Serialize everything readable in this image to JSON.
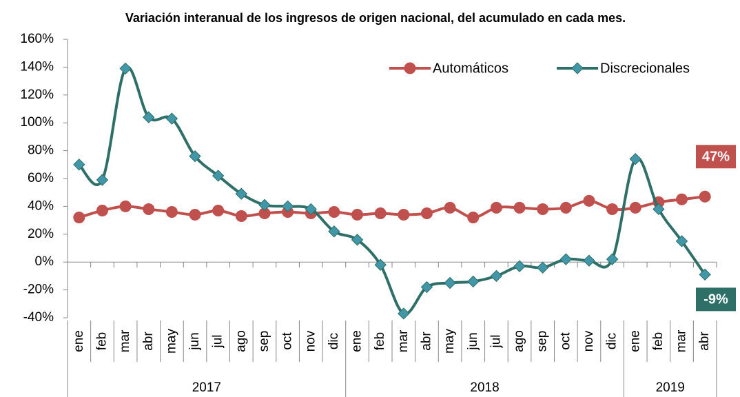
{
  "chart_data": {
    "type": "line",
    "title": "Variación interanual de los ingresos de origen nacional, del acumulado en cada mes.",
    "categories": [
      "ene",
      "feb",
      "mar",
      "abr",
      "may",
      "jun",
      "jul",
      "ago",
      "sep",
      "oct",
      "nov",
      "dic",
      "ene",
      "feb",
      "mar",
      "abr",
      "may",
      "jun",
      "jul",
      "ago",
      "sep",
      "oct",
      "nov",
      "dic",
      "ene",
      "feb",
      "mar",
      "abr"
    ],
    "category_groups": [
      "2017",
      "2017",
      "2017",
      "2017",
      "2017",
      "2017",
      "2017",
      "2017",
      "2017",
      "2017",
      "2017",
      "2017",
      "2018",
      "2018",
      "2018",
      "2018",
      "2018",
      "2018",
      "2018",
      "2018",
      "2018",
      "2018",
      "2018",
      "2018",
      "2019",
      "2019",
      "2019",
      "2019"
    ],
    "series": [
      {
        "name": "Automáticos",
        "color": "#c0504d",
        "marker": "circle",
        "values": [
          32,
          37,
          40,
          38,
          36,
          34,
          37,
          33,
          35,
          36,
          35,
          36,
          34,
          35,
          34,
          35,
          39,
          32,
          39,
          39,
          38,
          39,
          44,
          38,
          39,
          43,
          45,
          47
        ],
        "value_labels": [
          null,
          null,
          null,
          null,
          null,
          null,
          null,
          null,
          null,
          null,
          null,
          null,
          null,
          null,
          null,
          null,
          null,
          null,
          null,
          null,
          null,
          null,
          null,
          null,
          null,
          null,
          null,
          "47%"
        ]
      },
      {
        "name": "Discrecionales",
        "color": "#2e6f68",
        "marker": "diamond",
        "marker_color": "#4197a8",
        "values": [
          70,
          59,
          139,
          104,
          103,
          76,
          62,
          49,
          41,
          40,
          38,
          22,
          16,
          -2,
          -37,
          -18,
          -15,
          -14,
          -10,
          -3,
          -4,
          2,
          1,
          2,
          74,
          38,
          15,
          -9
        ],
        "value_labels": [
          null,
          null,
          null,
          null,
          null,
          null,
          null,
          null,
          null,
          null,
          null,
          null,
          null,
          null,
          null,
          null,
          null,
          null,
          null,
          null,
          null,
          null,
          null,
          null,
          null,
          null,
          null,
          "-9%"
        ]
      }
    ],
    "ylim": [
      -40,
      160
    ],
    "yticks": [
      {
        "value": -40,
        "label": "-40%"
      },
      {
        "value": -20,
        "label": "-20%"
      },
      {
        "value": 0,
        "label": "0%"
      },
      {
        "value": 20,
        "label": "20%"
      },
      {
        "value": 40,
        "label": "40%"
      },
      {
        "value": 60,
        "label": "60%"
      },
      {
        "value": 80,
        "label": "80%"
      },
      {
        "value": 100,
        "label": "100%"
      },
      {
        "value": 120,
        "label": "120%"
      },
      {
        "value": 140,
        "label": "140%"
      },
      {
        "value": 160,
        "label": "160%"
      }
    ],
    "grid": false,
    "legend": "top-right",
    "smooth": true
  }
}
